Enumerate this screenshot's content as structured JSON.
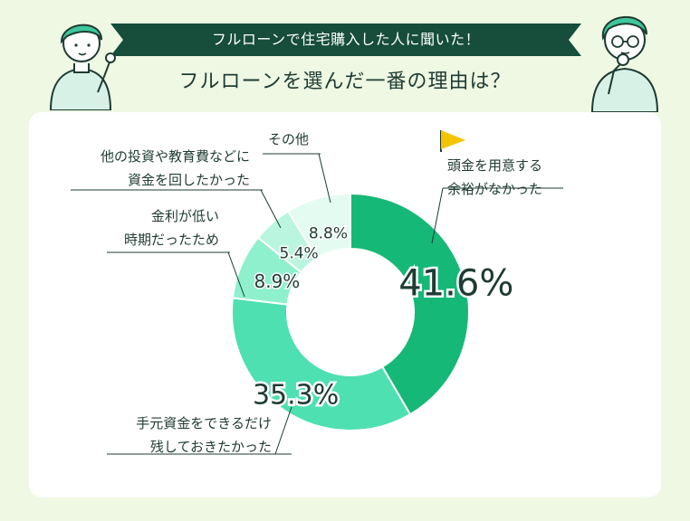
{
  "banner": {
    "text": "フルローンで住宅購入した人に聞いた！"
  },
  "title": "フルローンを選んだ一番の理由は？",
  "colors": {
    "background": "#eef8e3",
    "banner": "#164d3b",
    "text": "#1f3b33"
  },
  "chart_data": {
    "type": "pie",
    "variant": "donut",
    "title": "フルローンを選んだ一番の理由は？",
    "slices": [
      {
        "label": "頭金を用意する余裕がなかった",
        "lines": [
          "頭金を用意する",
          "余裕がなかった"
        ],
        "value": 41.6,
        "display": "41.6%",
        "color": "#16b877"
      },
      {
        "label": "手元資金をできるだけ残しておきたかった",
        "lines": [
          "手元資金をできるだけ",
          "残しておきたかった"
        ],
        "value": 35.3,
        "display": "35.3%",
        "color": "#4ee0b0"
      },
      {
        "label": "金利が低い時期だったため",
        "lines": [
          "金利が低い",
          "時期だったため"
        ],
        "value": 8.9,
        "display": "8.9%",
        "color": "#8ef0cd"
      },
      {
        "label": "他の投資や教育費などに資金を回したかった",
        "lines": [
          "他の投資や教育費などに",
          "資金を回したかった"
        ],
        "value": 5.4,
        "display": "5.4%",
        "color": "#baf6df"
      },
      {
        "label": "その他",
        "lines": [
          "その他"
        ],
        "value": 8.8,
        "display": "8.8%",
        "color": "#e4fbf1"
      }
    ]
  }
}
